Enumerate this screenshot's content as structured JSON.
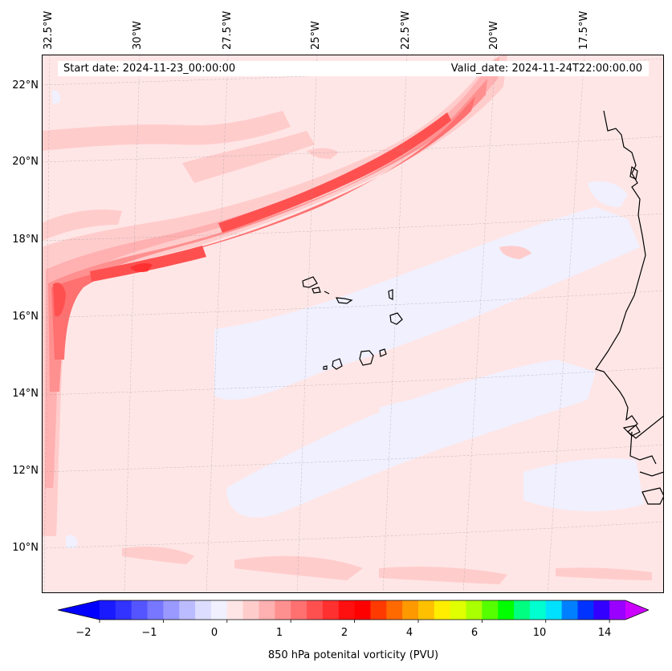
{
  "header": {
    "start_date": "Start date: 2024-11-23_00:00:00",
    "valid_date": "Valid_date: 2024-11-24T22:00:00.00"
  },
  "lat_labels": [
    "22°N",
    "20°N",
    "18°N",
    "16°N",
    "14°N",
    "12°N",
    "10°N"
  ],
  "lon_labels": [
    "32.5°W",
    "30°W",
    "27.5°W",
    "25°W",
    "22.5°W",
    "20°W",
    "17.5°W"
  ],
  "colorbar": {
    "label": "850 hPa potenital vorticity (PVU)",
    "tick_labels": [
      "−2",
      "−1",
      "0",
      "1",
      "2",
      "4",
      "6",
      "10",
      "14"
    ],
    "levels": [
      -2,
      -1.75,
      -1.5,
      -1.25,
      -1,
      -0.75,
      -0.5,
      -0.25,
      0,
      0.25,
      0.5,
      0.75,
      1,
      1.25,
      1.5,
      1.75,
      2,
      2.5,
      3,
      3.5,
      4,
      4.5,
      5,
      5.5,
      6,
      7,
      8,
      9,
      10,
      11,
      12,
      13,
      14
    ],
    "colors": [
      "#1a1aff",
      "#3333ff",
      "#5555ff",
      "#7777ff",
      "#9999ff",
      "#bbbbff",
      "#ddddff",
      "#f0f0ff",
      "#ffe6e6",
      "#ffcccc",
      "#ffb0b0",
      "#ff9090",
      "#ff7070",
      "#ff5050",
      "#ff3030",
      "#ff1010",
      "#ff0000",
      "#ff3a00",
      "#ff6a00",
      "#ff9900",
      "#ffc000",
      "#ffee00",
      "#e0ff00",
      "#aaff00",
      "#55ff00",
      "#00ff00",
      "#00ff80",
      "#00ffd0",
      "#00e0ff",
      "#0080ff",
      "#0033ff",
      "#3300ff",
      "#9900ff"
    ],
    "under_color": "#0000ff",
    "over_color": "#cc00ff"
  }
}
